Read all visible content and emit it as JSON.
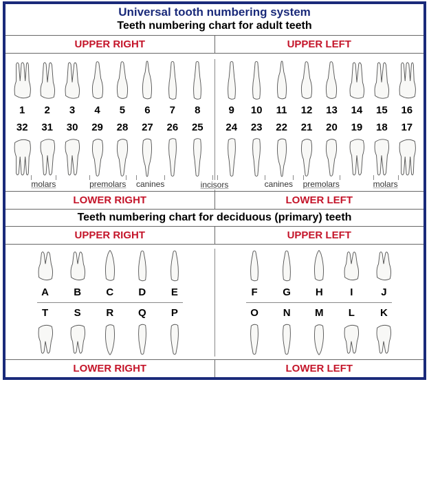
{
  "title": "Universal tooth numbering system",
  "adult_subtitle": "Teeth numbering chart for adult teeth",
  "primary_subtitle": "Teeth numbering chart for deciduous (primary) teeth",
  "quadrants": {
    "upper_right": "UPPER RIGHT",
    "upper_left": "UPPER LEFT",
    "lower_right": "LOWER RIGHT",
    "lower_left": "LOWER LEFT"
  },
  "adult": {
    "upper_right_nums": [
      "1",
      "2",
      "3",
      "4",
      "5",
      "6",
      "7",
      "8"
    ],
    "upper_left_nums": [
      "9",
      "10",
      "11",
      "12",
      "13",
      "14",
      "15",
      "16"
    ],
    "lower_right_nums": [
      "32",
      "31",
      "30",
      "29",
      "28",
      "27",
      "26",
      "25"
    ],
    "lower_left_nums": [
      "24",
      "23",
      "22",
      "21",
      "20",
      "19",
      "18",
      "17"
    ],
    "tooth_types_right": [
      "molars",
      "premolars",
      "canines"
    ],
    "tooth_types_center": "incisors",
    "tooth_types_left": [
      "canines",
      "premolars",
      "molars"
    ]
  },
  "primary": {
    "upper_right_letters": [
      "A",
      "B",
      "C",
      "D",
      "E"
    ],
    "upper_left_letters": [
      "F",
      "G",
      "H",
      "I",
      "J"
    ],
    "lower_right_letters": [
      "T",
      "S",
      "R",
      "Q",
      "P"
    ],
    "lower_left_letters": [
      "O",
      "N",
      "M",
      "L",
      "K"
    ]
  },
  "colors": {
    "border": "#1a2a7a",
    "title": "#1a2a7a",
    "quad_label": "#c4152a",
    "text": "#000000",
    "rule": "#666666"
  },
  "fonts": {
    "title_size": 17,
    "subtitle_size": 16,
    "quad_size": 15,
    "num_size": 15,
    "type_size": 12
  },
  "tooth_shapes_adult_upper": [
    "molar3",
    "molar2",
    "molar2",
    "premolar",
    "premolar",
    "canine",
    "incisor",
    "incisor"
  ],
  "tooth_shapes_adult_lower": [
    "molar3",
    "molar2",
    "molar2",
    "premolar",
    "premolar",
    "canine",
    "incisor",
    "incisor"
  ],
  "tooth_shapes_primary_upper": [
    "molar2",
    "molar2",
    "canine",
    "incisor",
    "incisor"
  ],
  "tooth_shapes_primary_lower": [
    "molar2",
    "molar2",
    "canine",
    "incisor",
    "incisor"
  ]
}
